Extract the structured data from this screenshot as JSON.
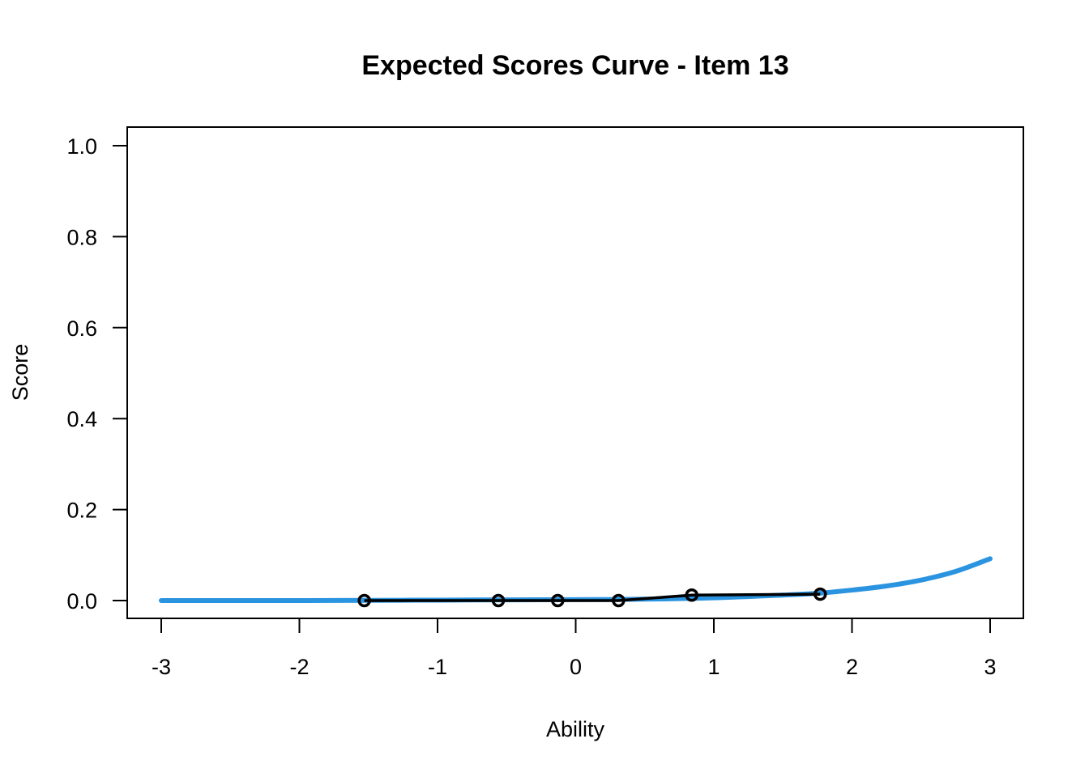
{
  "chart_data": {
    "type": "line",
    "title": "Expected Scores Curve - Item  13",
    "xlabel": "Ability",
    "ylabel": "Score",
    "xlim": [
      -3,
      3
    ],
    "ylim": [
      0,
      1
    ],
    "x_ticks": [
      "-3",
      "-2",
      "-1",
      "0",
      "1",
      "2",
      "3"
    ],
    "y_ticks": [
      "0.0",
      "0.2",
      "0.4",
      "0.6",
      "0.8",
      "1.0"
    ],
    "grid": false,
    "legend": "none",
    "series": [
      {
        "style": "smooth-curve",
        "color": "#2b94e0",
        "x": [
          -3.0,
          -2.5,
          -2.0,
          -1.5,
          -1.0,
          -0.5,
          0.0,
          0.5,
          1.0,
          1.5,
          1.75,
          2.0,
          2.25,
          2.5,
          2.75,
          3.0
        ],
        "values": [
          0.0,
          0.0,
          0.0,
          0.0005,
          0.001,
          0.0015,
          0.002,
          0.003,
          0.006,
          0.012,
          0.016,
          0.023,
          0.032,
          0.045,
          0.064,
          0.092
        ]
      },
      {
        "style": "line-with-open-circles",
        "color": "#000000",
        "x": [
          -1.53,
          -0.56,
          -0.13,
          0.31,
          0.84,
          1.77
        ],
        "values": [
          0.0,
          0.0,
          0.0,
          0.0,
          0.012,
          0.014
        ]
      }
    ]
  }
}
